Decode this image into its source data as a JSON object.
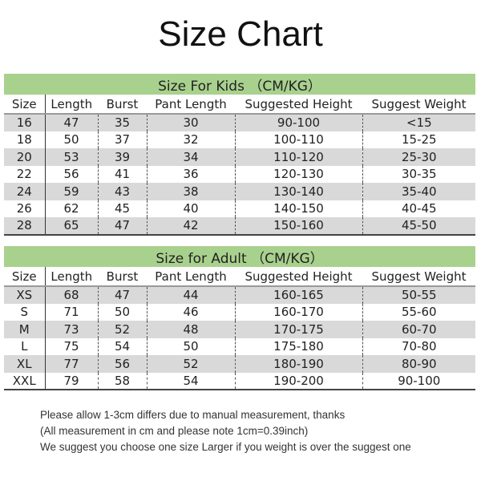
{
  "title": "Size Chart",
  "colors": {
    "band": "#a9d18e",
    "stripe": "#d9d9d9"
  },
  "kids": {
    "heading": "Size For Kids （CM/KG）",
    "columns": [
      "Size",
      "Length",
      "Burst",
      "Pant Length",
      "Suggested Height",
      "Suggest Weight"
    ],
    "rows": [
      [
        "16",
        "47",
        "35",
        "30",
        "90-100",
        "<15"
      ],
      [
        "18",
        "50",
        "37",
        "32",
        "100-110",
        "15-25"
      ],
      [
        "20",
        "53",
        "39",
        "34",
        "110-120",
        "25-30"
      ],
      [
        "22",
        "56",
        "41",
        "36",
        "120-130",
        "30-35"
      ],
      [
        "24",
        "59",
        "43",
        "38",
        "130-140",
        "35-40"
      ],
      [
        "26",
        "62",
        "45",
        "40",
        "140-150",
        "40-45"
      ],
      [
        "28",
        "65",
        "47",
        "42",
        "150-160",
        "45-50"
      ]
    ]
  },
  "adult": {
    "heading": "Size for Adult （CM/KG）",
    "columns": [
      "Size",
      "Length",
      "Burst",
      "Pant Length",
      "Suggested Height",
      "Suggest Weight"
    ],
    "rows": [
      [
        "XS",
        "68",
        "47",
        "44",
        "160-165",
        "50-55"
      ],
      [
        "S",
        "71",
        "50",
        "46",
        "160-170",
        "55-60"
      ],
      [
        "M",
        "73",
        "52",
        "48",
        "170-175",
        "60-70"
      ],
      [
        "L",
        "75",
        "54",
        "50",
        "175-180",
        "70-80"
      ],
      [
        "XL",
        "77",
        "56",
        "52",
        "180-190",
        "80-90"
      ],
      [
        "XXL",
        "79",
        "58",
        "54",
        "190-200",
        "90-100"
      ]
    ]
  },
  "notes": [
    "Please allow 1-3cm differs due to manual measurement, thanks",
    "(All measurement in cm and please note 1cm=0.39inch)",
    "We suggest you choose one size Larger if you weight is over the suggest one"
  ]
}
